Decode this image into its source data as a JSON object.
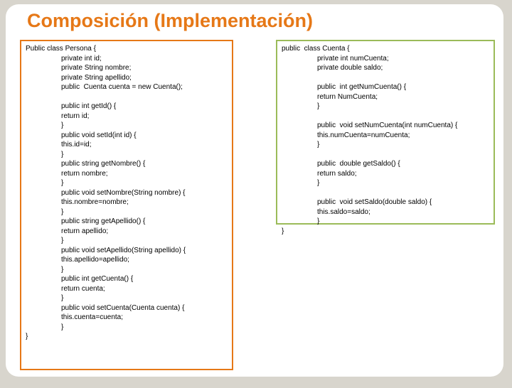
{
  "title": "Composición (Implementación)",
  "left_box": {
    "border_color": "#e67817",
    "lines": [
      {
        "indent": 0,
        "text": "Public class Persona {"
      },
      {
        "indent": 1,
        "text": "private int id;"
      },
      {
        "indent": 1,
        "text": "private String nombre;"
      },
      {
        "indent": 1,
        "text": "private String apellido;"
      },
      {
        "indent": 1,
        "text": "public  Cuenta cuenta = new Cuenta();"
      },
      {
        "indent": 1,
        "text": ""
      },
      {
        "indent": 1,
        "text": "public int getId() {"
      },
      {
        "indent": 1,
        "text": "return id;"
      },
      {
        "indent": 1,
        "text": "}"
      },
      {
        "indent": 1,
        "text": "public void setId(int id) {"
      },
      {
        "indent": 1,
        "text": "this.id=id;"
      },
      {
        "indent": 1,
        "text": "}"
      },
      {
        "indent": 1,
        "text": "public string getNombre() {"
      },
      {
        "indent": 1,
        "text": "return nombre;"
      },
      {
        "indent": 1,
        "text": "}"
      },
      {
        "indent": 1,
        "text": "public void setNombre(String nombre) {"
      },
      {
        "indent": 1,
        "text": "this.nombre=nombre;"
      },
      {
        "indent": 1,
        "text": "}"
      },
      {
        "indent": 1,
        "text": "public string getApellido() {"
      },
      {
        "indent": 1,
        "text": "return apellido;"
      },
      {
        "indent": 1,
        "text": "}"
      },
      {
        "indent": 1,
        "text": "public void setApellido(String apellido) {"
      },
      {
        "indent": 1,
        "text": "this.apellido=apellido;"
      },
      {
        "indent": 1,
        "text": "}"
      },
      {
        "indent": 1,
        "text": "public int getCuenta() {"
      },
      {
        "indent": 1,
        "text": "return cuenta;"
      },
      {
        "indent": 1,
        "text": "}"
      },
      {
        "indent": 1,
        "text": "public void setCuenta(Cuenta cuenta) {"
      },
      {
        "indent": 1,
        "text": "this.cuenta=cuenta;"
      },
      {
        "indent": 1,
        "text": "}"
      },
      {
        "indent": 0,
        "text": "}"
      }
    ]
  },
  "right_box": {
    "border_color": "#9bbb59",
    "lines": [
      {
        "indent": 0,
        "text": "public  class Cuenta {"
      },
      {
        "indent": 1,
        "text": "private int numCuenta;"
      },
      {
        "indent": 1,
        "text": "private double saldo;"
      },
      {
        "indent": 1,
        "text": ""
      },
      {
        "indent": 1,
        "text": "public  int getNumCuenta() {"
      },
      {
        "indent": 1,
        "text": "return NumCuenta;"
      },
      {
        "indent": 1,
        "text": "}"
      },
      {
        "indent": 1,
        "text": ""
      },
      {
        "indent": 1,
        "text": "public  void setNumCuenta(int numCuenta) {"
      },
      {
        "indent": 1,
        "text": "this.numCuenta=numCuenta;"
      },
      {
        "indent": 1,
        "text": "}"
      },
      {
        "indent": 1,
        "text": ""
      },
      {
        "indent": 1,
        "text": "public  double getSaldo() {"
      },
      {
        "indent": 1,
        "text": "return saldo;"
      },
      {
        "indent": 1,
        "text": "}"
      },
      {
        "indent": 1,
        "text": ""
      },
      {
        "indent": 1,
        "text": "public  void setSaldo(double saldo) {"
      },
      {
        "indent": 1,
        "text": "this.saldo=saldo;"
      },
      {
        "indent": 1,
        "text": "}"
      },
      {
        "indent": 0,
        "text": "}"
      }
    ]
  },
  "colors": {
    "background": "#d8d5cd",
    "slide_bg": "#ffffff",
    "title_color": "#e67817",
    "text_color": "#000000"
  },
  "fonts": {
    "title": {
      "family": "Verdana",
      "size": 27,
      "weight": "bold"
    },
    "code": {
      "family": "Arial",
      "size": 10
    }
  }
}
